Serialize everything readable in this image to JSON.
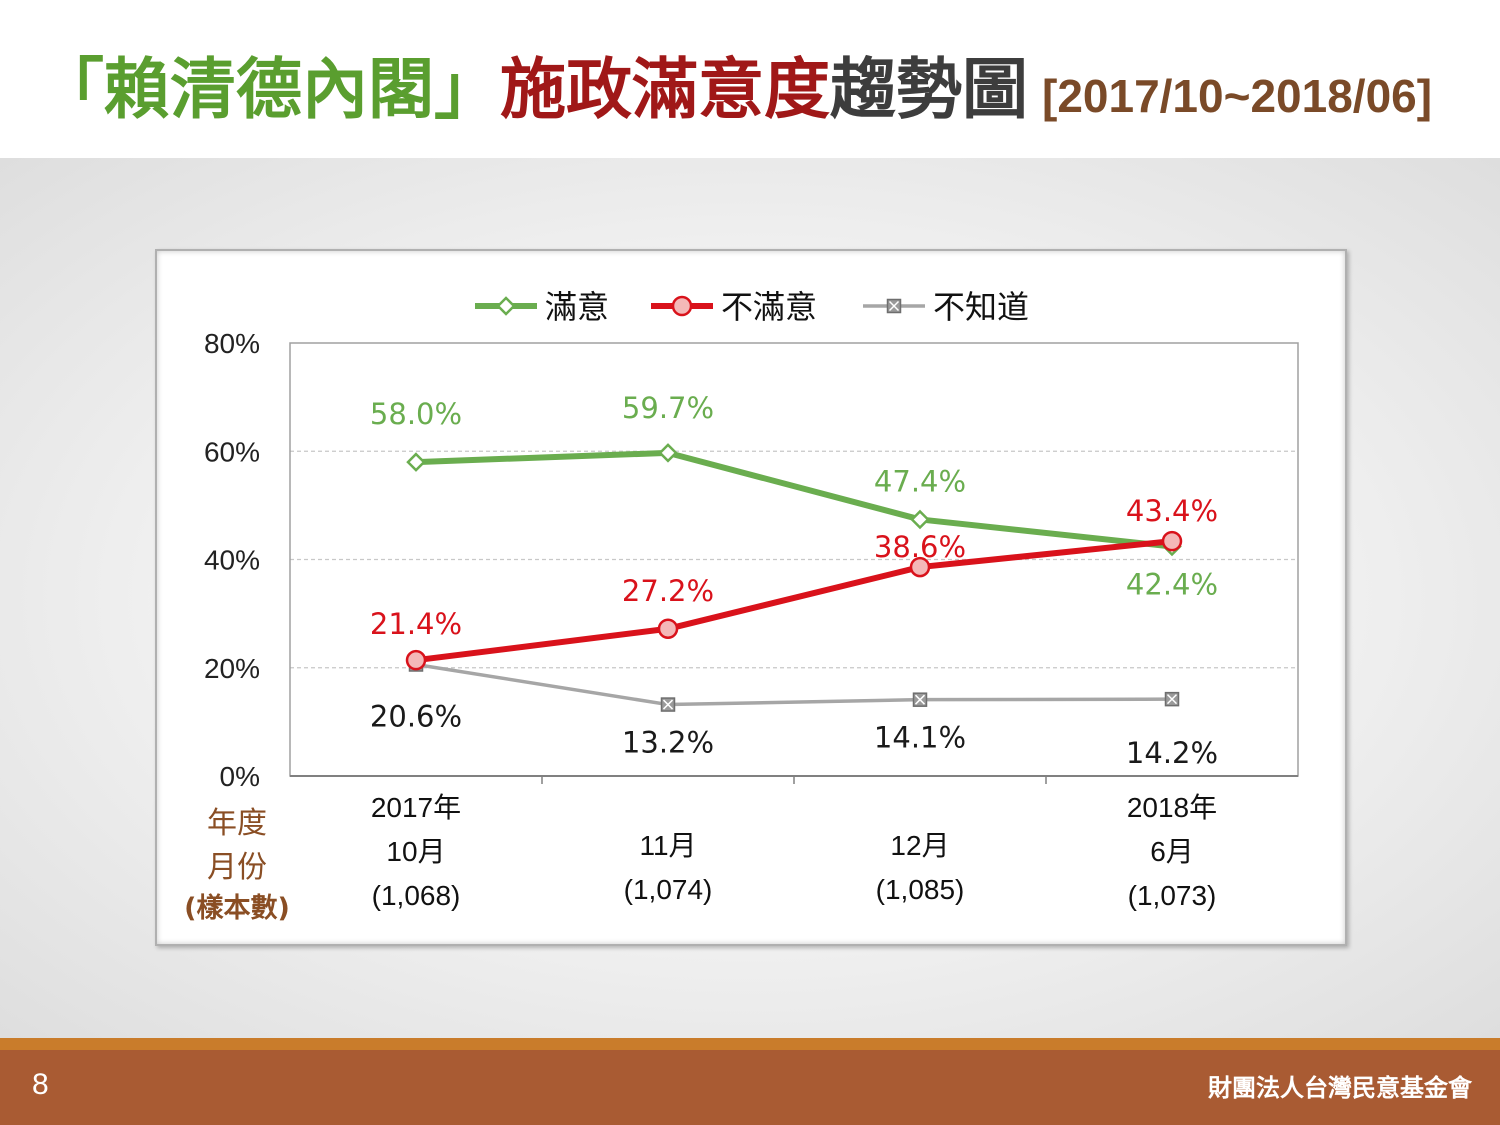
{
  "title": {
    "part1": "「賴清德內閣」",
    "part2": "施政滿意度",
    "part3": "趨勢圖",
    "period": "[2017/10~2018/06]"
  },
  "footer": {
    "page_number": "8",
    "organization": "財團法人台灣民意基金會"
  },
  "colors": {
    "satisfied": "#6aad4f",
    "dissatisfied": "#d9121b",
    "unknown": "#a6a6a6",
    "axis_label_brown": "#8a4e24"
  },
  "chart_data": {
    "type": "line",
    "categories": [
      "2017年 10月 (1,068)",
      "11月 (1,074)",
      "12月 (1,085)",
      "2018年 6月 (1,073)"
    ],
    "category_lines": [
      [
        "2017年",
        "10月",
        "(1,068)"
      ],
      [
        "11月",
        "(1,074)"
      ],
      [
        "12月",
        "(1,085)"
      ],
      [
        "2018年",
        "6月",
        "(1,073)"
      ]
    ],
    "axis_title_lines": [
      "年度",
      "月份",
      "(樣本數)"
    ],
    "ylim": [
      0,
      80
    ],
    "yticks": [
      0,
      20,
      40,
      60,
      80
    ],
    "ytick_labels": [
      "0%",
      "20%",
      "40%",
      "60%",
      "80%"
    ],
    "grid": true,
    "legend_position": "top",
    "series": [
      {
        "name": "滿意",
        "values": [
          58.0,
          59.7,
          47.4,
          42.4
        ],
        "labels": [
          "58.0%",
          "59.7%",
          "47.4%",
          "42.4%"
        ],
        "marker": "diamond",
        "color": "#6aad4f"
      },
      {
        "name": "不滿意",
        "values": [
          21.4,
          27.2,
          38.6,
          43.4
        ],
        "labels": [
          "21.4%",
          "27.2%",
          "38.6%",
          "43.4%"
        ],
        "marker": "circle",
        "color": "#d9121b"
      },
      {
        "name": "不知道",
        "values": [
          20.6,
          13.2,
          14.1,
          14.2
        ],
        "labels": [
          "20.6%",
          "13.2%",
          "14.1%",
          "14.2%"
        ],
        "marker": "x-square",
        "color": "#a6a6a6"
      }
    ]
  }
}
